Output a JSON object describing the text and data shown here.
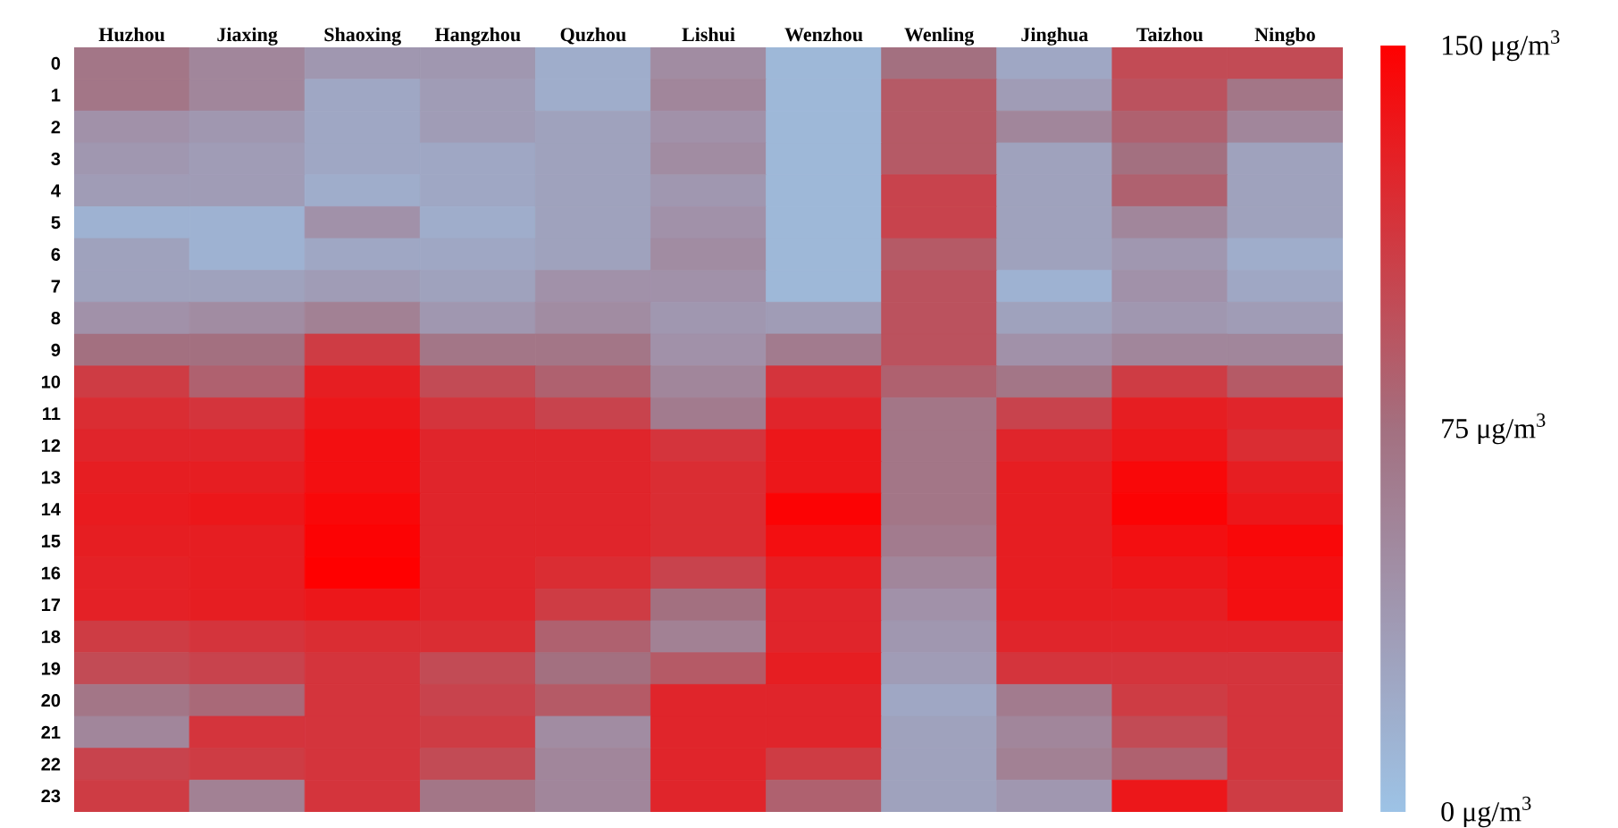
{
  "chart_data": {
    "type": "heatmap",
    "categories": [
      "Huzhou",
      "Jiaxing",
      "Shaoxing",
      "Hangzhou",
      "Quzhou",
      "Lishui",
      "Wenzhou",
      "Wenling",
      "Jinghua",
      "Taizhou",
      "Ningbo"
    ],
    "y_categories": [
      "0",
      "1",
      "2",
      "3",
      "4",
      "5",
      "6",
      "7",
      "8",
      "9",
      "10",
      "11",
      "12",
      "13",
      "14",
      "15",
      "16",
      "17",
      "18",
      "19",
      "20",
      "21",
      "22",
      "23"
    ],
    "cells": [
      [
        70,
        55,
        40,
        40,
        20,
        50,
        10,
        75,
        25,
        100,
        100
      ],
      [
        70,
        55,
        25,
        35,
        20,
        55,
        10,
        90,
        35,
        95,
        70
      ],
      [
        45,
        40,
        25,
        35,
        30,
        45,
        10,
        90,
        55,
        85,
        55
      ],
      [
        40,
        35,
        25,
        25,
        30,
        50,
        10,
        90,
        30,
        75,
        30
      ],
      [
        35,
        35,
        20,
        25,
        30,
        40,
        10,
        105,
        30,
        85,
        30
      ],
      [
        15,
        15,
        45,
        20,
        30,
        45,
        10,
        105,
        30,
        55,
        30
      ],
      [
        30,
        15,
        25,
        25,
        30,
        50,
        10,
        90,
        30,
        40,
        20
      ],
      [
        30,
        30,
        35,
        30,
        45,
        45,
        10,
        95,
        15,
        45,
        25
      ],
      [
        45,
        50,
        60,
        40,
        50,
        40,
        35,
        95,
        30,
        40,
        35
      ],
      [
        75,
        75,
        110,
        70,
        70,
        45,
        65,
        95,
        45,
        55,
        55
      ],
      [
        110,
        85,
        130,
        100,
        85,
        55,
        115,
        85,
        70,
        110,
        90
      ],
      [
        120,
        115,
        135,
        115,
        105,
        65,
        125,
        70,
        105,
        130,
        125
      ],
      [
        125,
        125,
        140,
        125,
        125,
        115,
        135,
        70,
        125,
        135,
        120
      ],
      [
        130,
        130,
        140,
        125,
        125,
        120,
        135,
        70,
        130,
        145,
        130
      ],
      [
        132,
        135,
        145,
        125,
        125,
        120,
        148,
        70,
        130,
        148,
        135
      ],
      [
        130,
        130,
        148,
        125,
        125,
        120,
        140,
        65,
        130,
        140,
        145
      ],
      [
        128,
        130,
        150,
        125,
        120,
        105,
        130,
        55,
        130,
        135,
        140
      ],
      [
        128,
        130,
        135,
        125,
        110,
        75,
        125,
        45,
        130,
        130,
        140
      ],
      [
        110,
        115,
        120,
        120,
        85,
        60,
        125,
        40,
        125,
        125,
        125
      ],
      [
        100,
        105,
        115,
        100,
        75,
        90,
        130,
        35,
        115,
        115,
        115
      ],
      [
        70,
        80,
        115,
        105,
        90,
        125,
        125,
        25,
        65,
        110,
        115
      ],
      [
        55,
        115,
        115,
        110,
        50,
        125,
        125,
        30,
        55,
        100,
        115
      ],
      [
        105,
        110,
        115,
        100,
        55,
        125,
        110,
        30,
        60,
        85,
        115
      ],
      [
        110,
        60,
        115,
        70,
        55,
        125,
        85,
        30,
        40,
        135,
        110
      ]
    ],
    "clim": [
      0,
      150
    ],
    "cticks": [
      {
        "value": 0,
        "label": "0 μg/m$^{3}$"
      },
      {
        "value": 75,
        "label": "75 μg/m$^{3}$"
      },
      {
        "value": 150,
        "label": "150 μg/m$^{3}$"
      }
    ]
  }
}
